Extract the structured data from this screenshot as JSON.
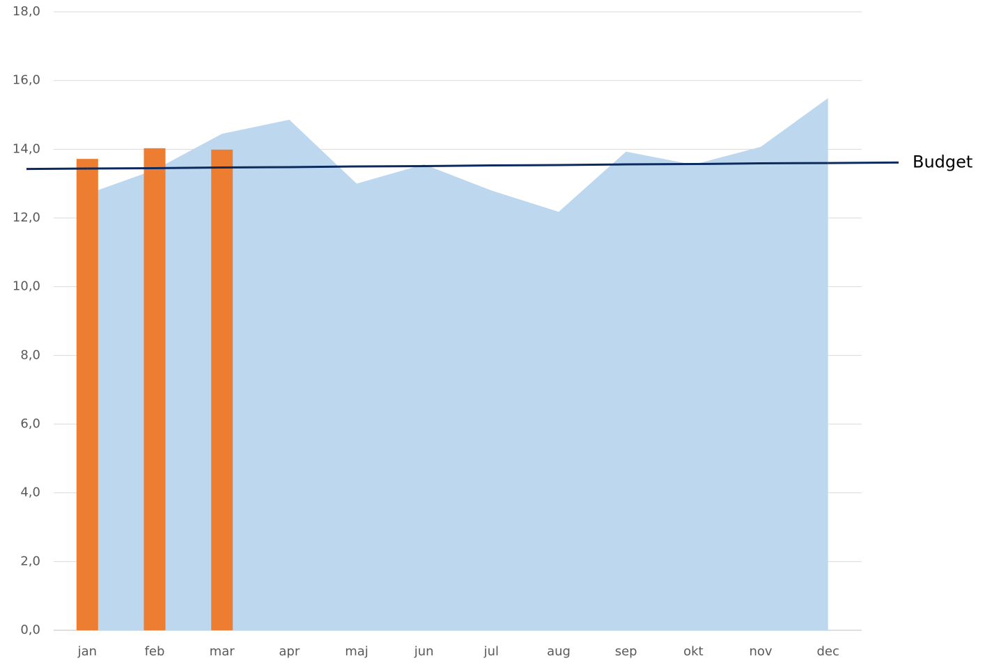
{
  "chart_data": {
    "type": "combo",
    "categories": [
      "jan",
      "feb",
      "mar",
      "apr",
      "maj",
      "jun",
      "jul",
      "aug",
      "sep",
      "okt",
      "nov",
      "dec"
    ],
    "series": [
      {
        "type": "area",
        "color": "#bdd7ee",
        "values": [
          12.7,
          13.4,
          14.45,
          14.86,
          13.0,
          13.56,
          12.8,
          12.18,
          13.93,
          13.55,
          14.07,
          15.49
        ]
      },
      {
        "type": "bar",
        "color": "#ed7d31",
        "values": [
          13.72,
          14.03,
          13.99,
          null,
          null,
          null,
          null,
          null,
          null,
          null,
          null,
          null
        ]
      },
      {
        "type": "line",
        "name": "Budget",
        "color": "#0b2a5e",
        "values": [
          13.44,
          13.45,
          13.47,
          13.48,
          13.5,
          13.51,
          13.53,
          13.54,
          13.56,
          13.57,
          13.59,
          13.6
        ]
      }
    ],
    "ylim": [
      0,
      18
    ],
    "yticks": [
      {
        "value": 0,
        "label": "0,0"
      },
      {
        "value": 2,
        "label": "2,0"
      },
      {
        "value": 4,
        "label": "4,0"
      },
      {
        "value": 6,
        "label": "6,0"
      },
      {
        "value": 8,
        "label": "8,0"
      },
      {
        "value": 10,
        "label": "10,0"
      },
      {
        "value": 12,
        "label": "12,0"
      },
      {
        "value": 14,
        "label": "14,0"
      },
      {
        "value": 16,
        "label": "16,0"
      },
      {
        "value": 18,
        "label": "18,0"
      }
    ],
    "grid": true
  }
}
